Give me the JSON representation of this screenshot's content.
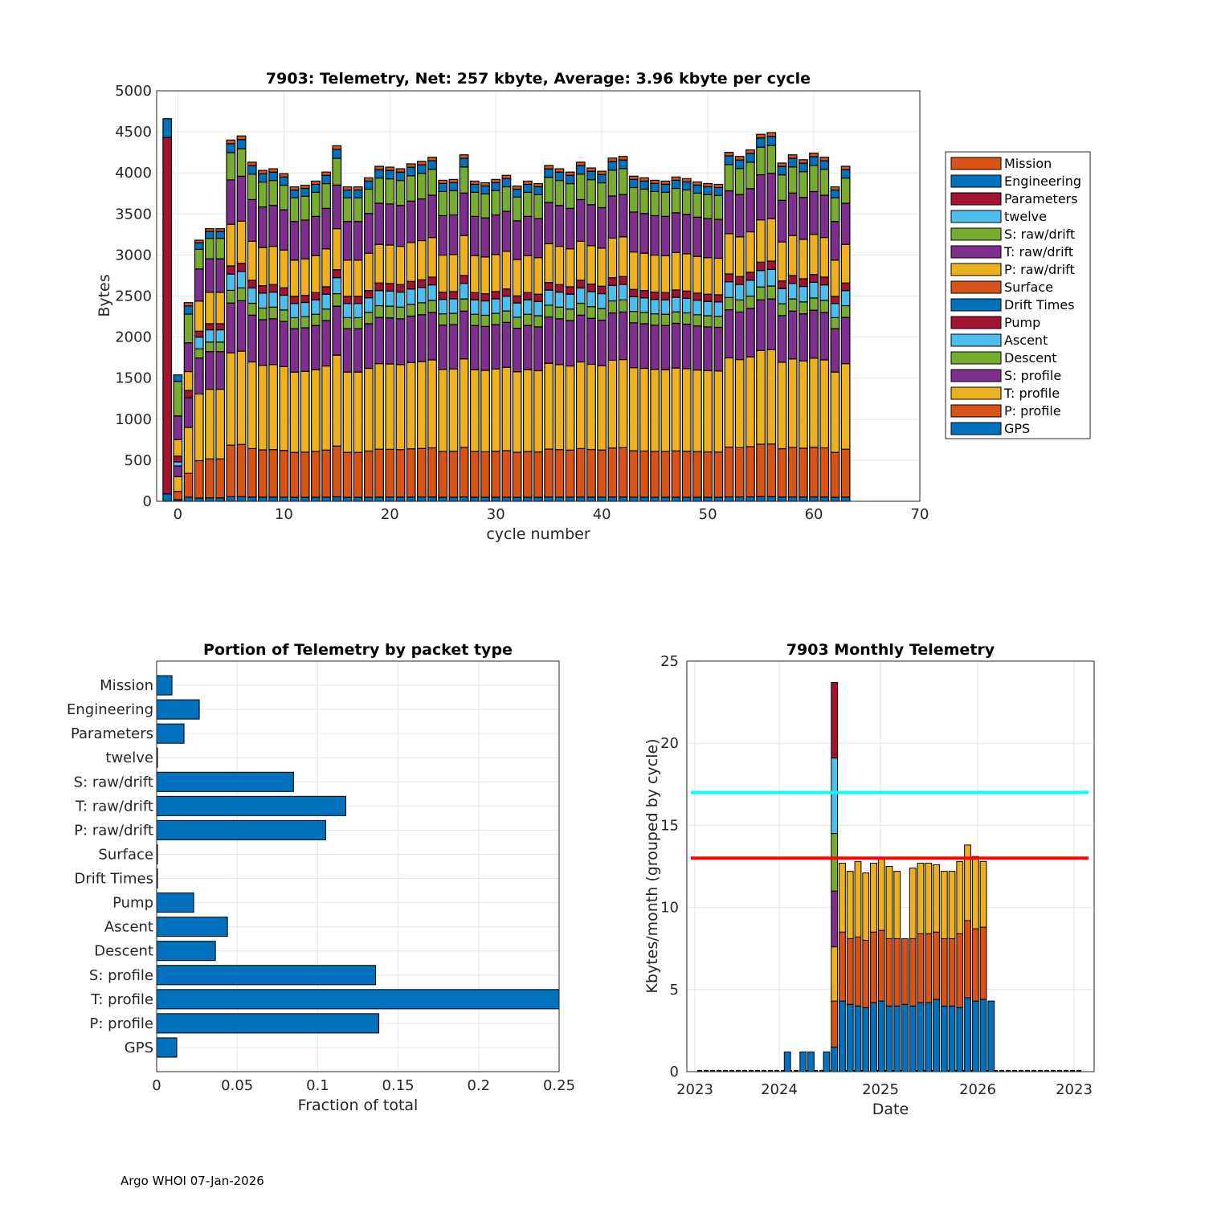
{
  "footer": "Argo WHOI 07-Jan-2026",
  "chart_data": [
    {
      "type": "bar",
      "stacked": true,
      "title": "7903: Telemetry, Net:    257 kbyte,  Average: 3.96 kbyte per cycle",
      "xlabel": "cycle number",
      "ylabel": "Bytes",
      "xlim": [
        -2,
        70
      ],
      "ylim": [
        0,
        5000
      ],
      "xticks": [
        0,
        10,
        20,
        30,
        40,
        50,
        60,
        70
      ],
      "yticks": [
        0,
        500,
        1000,
        1500,
        2000,
        2500,
        3000,
        3500,
        4000,
        4500,
        5000
      ],
      "grid": true,
      "legend_position": "right-outside",
      "stack_order_bottom_to_top": [
        "GPS",
        "P: profile",
        "T: profile",
        "S: profile",
        "Descent",
        "Ascent",
        "Pump",
        "Drift Times",
        "Surface",
        "P: raw/drift",
        "T: raw/drift",
        "S: raw/drift",
        "twelve",
        "Parameters",
        "Engineering",
        "Mission"
      ],
      "legend": [
        {
          "name": "Mission",
          "color": "#D95319"
        },
        {
          "name": "Engineering",
          "color": "#0072BD"
        },
        {
          "name": "Parameters",
          "color": "#A2142F"
        },
        {
          "name": "twelve",
          "color": "#4DBEEE"
        },
        {
          "name": "S: raw/drift",
          "color": "#77AC30"
        },
        {
          "name": "T: raw/drift",
          "color": "#7E2F8E"
        },
        {
          "name": "P: raw/drift",
          "color": "#EDB120"
        },
        {
          "name": "Surface",
          "color": "#D95319"
        },
        {
          "name": "Drift Times",
          "color": "#0072BD"
        },
        {
          "name": "Pump",
          "color": "#A2142F"
        },
        {
          "name": "Ascent",
          "color": "#4DBEEE"
        },
        {
          "name": "Descent",
          "color": "#77AC30"
        },
        {
          "name": "S: profile",
          "color": "#7E2F8E"
        },
        {
          "name": "T: profile",
          "color": "#EDB120"
        },
        {
          "name": "P: profile",
          "color": "#D95319"
        },
        {
          "name": "GPS",
          "color": "#0072BD"
        }
      ],
      "special_cycles": [
        {
          "cycle": -1,
          "segments": {
            "GPS": 90,
            "Parameters": 4340,
            "Engineering": 230
          }
        },
        {
          "cycle": 0,
          "segments": {
            "GPS": 20,
            "P: profile": 100,
            "T: profile": 180,
            "S: profile": 130,
            "Descent": 0,
            "Ascent": 50,
            "Pump": 70,
            "P: raw/drift": 200,
            "T: raw/drift": 290,
            "S: raw/drift": 420,
            "Engineering": 80
          }
        },
        {
          "cycle": 1,
          "segments": {
            "GPS": 50,
            "P: profile": 290,
            "T: profile": 560,
            "S: profile": 360,
            "Pump": 90,
            "P: raw/drift": 230,
            "T: raw/drift": 350,
            "S: raw/drift": 350,
            "Engineering": 100,
            "Mission": 40
          }
        }
      ],
      "cycles": [
        2,
        3,
        4,
        5,
        6,
        7,
        8,
        9,
        10,
        11,
        12,
        13,
        14,
        15,
        16,
        17,
        18,
        19,
        20,
        21,
        22,
        23,
        24,
        25,
        26,
        27,
        28,
        29,
        30,
        31,
        32,
        33,
        34,
        35,
        36,
        37,
        38,
        39,
        40,
        41,
        42,
        43,
        44,
        45,
        46,
        47,
        48,
        49,
        50,
        51,
        52,
        53,
        54,
        55,
        56,
        57,
        58,
        59,
        60,
        61,
        62,
        63
      ],
      "totals": [
        3180,
        3320,
        3320,
        4400,
        4450,
        4130,
        4030,
        4050,
        3990,
        3830,
        3850,
        3900,
        4010,
        4330,
        3830,
        3830,
        3940,
        4080,
        4070,
        4050,
        4110,
        4140,
        4190,
        3910,
        3920,
        4220,
        3900,
        3880,
        3920,
        3970,
        3840,
        3900,
        3870,
        4090,
        4050,
        4010,
        4130,
        4060,
        4020,
        4180,
        4200,
        3960,
        3940,
        3910,
        3900,
        3950,
        3930,
        3890,
        3870,
        3860,
        4250,
        4200,
        4280,
        4470,
        4490,
        4120,
        4220,
        4160,
        4240,
        4190,
        3830,
        4080
      ],
      "typical_segments": {
        "GPS": 50,
        "P: profile": 570,
        "T: profile": 1020,
        "S: profile": 550,
        "Descent": 140,
        "Ascent": 180,
        "Pump": 90,
        "Drift Times": 0,
        "Surface": 0,
        "P: raw/drift": 460,
        "T: raw/drift": 490,
        "S: raw/drift": 300,
        "twelve": 0,
        "Parameters": 0,
        "Engineering": 100,
        "Mission": 40
      }
    },
    {
      "type": "bar",
      "orientation": "horizontal",
      "title": "Portion of Telemetry by packet type",
      "xlabel": "Fraction of total",
      "ylabel": "",
      "xlim": [
        0,
        0.25
      ],
      "xticks": [
        0,
        0.05,
        0.1,
        0.15,
        0.2,
        0.25
      ],
      "xtick_labels": [
        "0",
        "0.05",
        "0.1",
        "0.15",
        "0.2",
        "0.25"
      ],
      "grid": true,
      "color": "#0072BD",
      "categories": [
        "Mission",
        "Engineering",
        "Parameters",
        "twelve",
        "S: raw/drift",
        "T: raw/drift",
        "P: raw/drift",
        "Surface",
        "Drift Times",
        "Pump",
        "Ascent",
        "Descent",
        "S: profile",
        "T: profile",
        "P: profile",
        "GPS"
      ],
      "values": [
        0.0095,
        0.0265,
        0.017,
        0.0005,
        0.085,
        0.1175,
        0.105,
        0.0005,
        0.0003,
        0.023,
        0.044,
        0.0365,
        0.136,
        0.26,
        0.138,
        0.0125
      ]
    },
    {
      "type": "bar",
      "stacked": true,
      "title": "7903 Monthly Telemetry",
      "xlabel": "Date",
      "ylabel": "Kbytes/month (grouped by cycle)",
      "ylim": [
        0,
        25
      ],
      "yticks": [
        0,
        5,
        10,
        15,
        20,
        25
      ],
      "xtick_labels": [
        "2023",
        "2024",
        "2025",
        "2026",
        "2023"
      ],
      "grid": true,
      "reference_lines": [
        {
          "value": 17,
          "color": "#00FFFF"
        },
        {
          "value": 13,
          "color": "#FF0000"
        }
      ],
      "segment_colors": [
        "#0072BD",
        "#D95319",
        "#EDB120",
        "#7E2F8E",
        "#77AC30",
        "#4DBEEE",
        "#A2142F"
      ],
      "months_index_from_start": [
        0,
        1,
        2,
        3,
        4,
        5,
        6,
        7,
        8,
        9,
        10,
        11,
        12,
        13,
        14,
        15,
        16,
        17,
        18,
        19,
        20,
        21,
        22,
        23,
        24,
        25,
        26,
        27,
        28,
        29,
        30,
        31,
        32,
        33,
        34,
        35,
        36,
        37,
        38,
        39,
        40,
        41,
        42,
        43,
        44,
        45,
        46,
        47,
        48
      ],
      "monthly_stacks": [
        [],
        [],
        [],
        [],
        [],
        [],
        [],
        [],
        [],
        [],
        [],
        [
          1.2
        ],
        [],
        [
          1.2
        ],
        [
          1.2
        ],
        [],
        [
          1.2
        ],
        [
          1.5,
          2.8,
          3.3,
          3.4,
          3.5,
          4.6,
          4.6
        ],
        [
          4.3,
          4.2,
          4.2
        ],
        [
          4.1,
          4.0,
          4.1
        ],
        [
          4.0,
          4.2,
          4.6
        ],
        [
          3.9,
          4.1,
          4.1
        ],
        [
          4.2,
          4.3,
          4.2
        ],
        [
          4.3,
          4.3,
          4.4
        ],
        [
          4.0,
          4.1,
          4.4
        ],
        [
          4.0,
          4.1,
          4.1
        ],
        [
          4.1,
          4.0
        ],
        [
          4.0,
          4.1,
          4.3
        ],
        [
          4.2,
          4.2,
          4.3
        ],
        [
          4.2,
          4.2,
          4.3
        ],
        [
          4.4,
          4.1,
          4.1
        ],
        [
          4.0,
          4.1,
          4.1
        ],
        [
          4.0,
          4.1,
          4.1
        ],
        [
          3.9,
          4.5,
          4.4
        ],
        [
          4.5,
          4.7,
          4.6
        ],
        [
          4.3,
          4.4,
          4.4
        ],
        [
          4.4,
          4.4,
          4.0
        ],
        [
          4.3
        ],
        [],
        [],
        [],
        [],
        [],
        [],
        [],
        [],
        [],
        [],
        []
      ]
    }
  ]
}
